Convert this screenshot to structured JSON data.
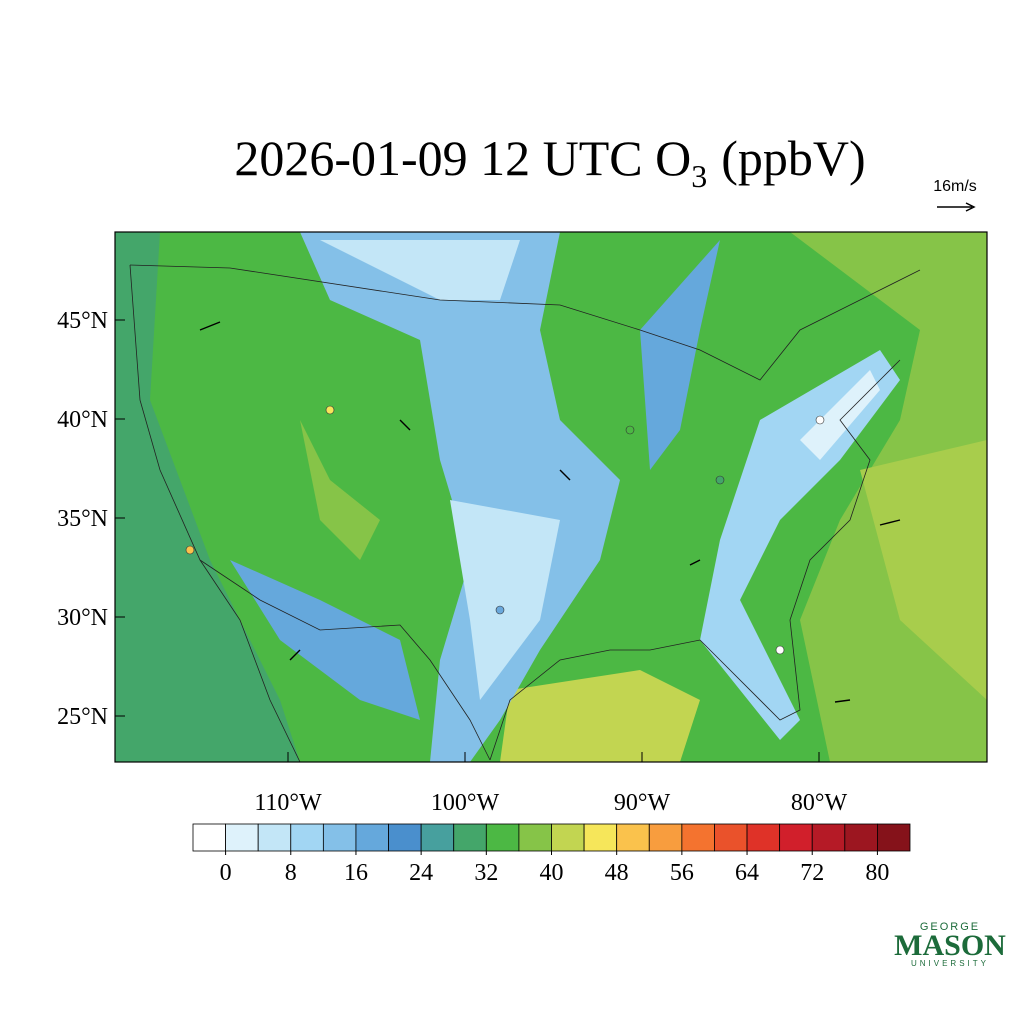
{
  "map": {
    "title": {
      "main": "2026-01-09 12 UTC O",
      "sub": "3",
      "tail": "(ppbV)"
    },
    "vector_reference": "16m/s",
    "lat_ticks": [
      {
        "value": 45,
        "label": "45°N"
      },
      {
        "value": 40,
        "label": "40°N"
      },
      {
        "value": 35,
        "label": "35°N"
      },
      {
        "value": 30,
        "label": "30°N"
      },
      {
        "value": 25,
        "label": "25°N"
      }
    ],
    "lon_ticks": [
      {
        "value": -110,
        "label": "110°W"
      },
      {
        "value": -100,
        "label": "100°W"
      },
      {
        "value": -90,
        "label": "90°W"
      },
      {
        "value": -80,
        "label": "80°W"
      }
    ],
    "colorbar": {
      "colors": [
        "#ffffff",
        "#def2fb",
        "#c3e6f7",
        "#a2d6f3",
        "#84c0e8",
        "#65a8dc",
        "#4a8fcd",
        "#47a09e",
        "#44a66a",
        "#4cb844",
        "#86c448",
        "#c2d551",
        "#f6e65a",
        "#fac24c",
        "#f89d3e",
        "#f4732f",
        "#ea522b",
        "#df3228",
        "#d11f2b",
        "#b51a26",
        "#9c1620",
        "#85121a"
      ],
      "range": [
        -4,
        84
      ],
      "ticks": [
        0,
        8,
        16,
        24,
        32,
        40,
        48,
        56,
        64,
        72,
        80
      ]
    },
    "logo": {
      "top": "GEORGE",
      "main": "MASON",
      "bottom": "UNIVERSITY"
    }
  }
}
